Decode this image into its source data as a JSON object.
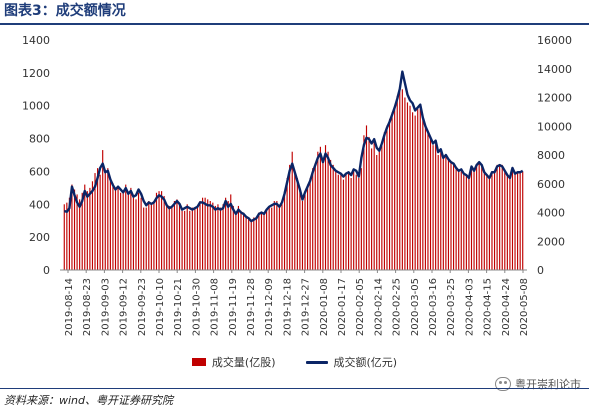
{
  "title": "图表3：成交额情况",
  "source": "资料来源：wind、粤开证券研究院",
  "watermark": "粤开崇利论市",
  "watermark_icon": "wechat-icon",
  "chart_data": {
    "type": "bar+line",
    "title": "",
    "y_left": {
      "ylim": [
        0,
        1400
      ],
      "ticks": [
        0,
        200,
        400,
        600,
        800,
        1000,
        1200,
        1400
      ]
    },
    "y_right": {
      "ylim": [
        0,
        16000
      ],
      "ticks": [
        0,
        2000,
        4000,
        6000,
        8000,
        10000,
        12000,
        14000,
        16000
      ]
    },
    "x_tick_labels": [
      "2019-08-14",
      "2019-08-23",
      "2019-09-03",
      "2019-09-12",
      "2019-09-23",
      "2019-10-10",
      "2019-10-21",
      "2019-10-30",
      "2019-11-08",
      "2019-11-19",
      "2019-11-28",
      "2019-12-09",
      "2019-12-18",
      "2019-12-27",
      "2020-01-08",
      "2020-01-17",
      "2020-02-05",
      "2020-02-14",
      "2020-02-25",
      "2020-03-05",
      "2020-03-16",
      "2020-03-25",
      "2020-04-03",
      "2020-04-15",
      "2020-04-24",
      "2020-05-08"
    ],
    "series": [
      {
        "name": "成交量(亿股)",
        "type": "bar",
        "axis": "left",
        "color": "#c00000",
        "values": [
          400,
          410,
          440,
          520,
          490,
          460,
          430,
          470,
          520,
          480,
          500,
          540,
          590,
          620,
          580,
          730,
          610,
          620,
          560,
          530,
          500,
          500,
          470,
          480,
          520,
          460,
          500,
          440,
          430,
          470,
          440,
          380,
          380,
          420,
          410,
          420,
          470,
          480,
          480,
          450,
          400,
          390,
          380,
          420,
          430,
          400,
          360,
          360,
          400,
          360,
          380,
          370,
          380,
          420,
          440,
          440,
          430,
          420,
          410,
          390,
          400,
          380,
          400,
          440,
          420,
          460,
          390,
          350,
          390,
          360,
          350,
          330,
          310,
          300,
          320,
          320,
          350,
          350,
          340,
          370,
          380,
          380,
          420,
          420,
          390,
          420,
          480,
          560,
          640,
          720,
          600,
          560,
          500,
          420,
          460,
          520,
          560,
          620,
          650,
          720,
          750,
          660,
          760,
          720,
          670,
          640,
          600,
          580,
          580,
          550,
          580,
          590,
          560,
          600,
          580,
          560,
          620,
          820,
          880,
          810,
          740,
          780,
          700,
          720,
          780,
          840,
          880,
          920,
          960,
          1000,
          1060,
          1120,
          1100,
          1050,
          1020,
          1000,
          960,
          940,
          980,
          1000,
          920,
          880,
          840,
          800,
          760,
          780,
          700,
          720,
          680,
          700,
          680,
          660,
          640,
          620,
          600,
          600,
          580,
          580,
          560,
          620,
          600,
          640,
          660,
          640,
          600,
          580,
          560,
          600,
          600,
          640,
          640,
          640,
          600,
          580,
          560,
          620,
          600,
          600,
          600,
          600
        ]
      },
      {
        "name": "成交额(亿元)",
        "type": "line",
        "axis": "right",
        "color": "#0b2566",
        "values": [
          4100,
          4050,
          4300,
          5800,
          5200,
          4700,
          4400,
          4800,
          5500,
          5100,
          5300,
          5500,
          5800,
          6400,
          7100,
          7400,
          6800,
          6900,
          6300,
          5900,
          5600,
          5800,
          5600,
          5400,
          5700,
          5300,
          5500,
          5100,
          5200,
          5600,
          5300,
          4800,
          4500,
          4700,
          4600,
          4700,
          5000,
          5200,
          5100,
          4900,
          4500,
          4300,
          4400,
          4600,
          4800,
          4600,
          4200,
          4300,
          4400,
          4300,
          4200,
          4300,
          4400,
          4700,
          4700,
          4600,
          4500,
          4500,
          4400,
          4200,
          4300,
          4200,
          4300,
          4800,
          4400,
          4600,
          4200,
          3900,
          4200,
          4000,
          3900,
          3700,
          3600,
          3400,
          3500,
          3600,
          3900,
          4000,
          3900,
          4200,
          4400,
          4500,
          4600,
          4600,
          4400,
          4700,
          5300,
          6100,
          6900,
          7400,
          6800,
          6200,
          5600,
          4900,
          5400,
          5800,
          6200,
          6800,
          7300,
          7800,
          8100,
          7500,
          8100,
          7800,
          7300,
          7100,
          6900,
          6800,
          6700,
          6500,
          6700,
          6800,
          6600,
          7000,
          6900,
          6500,
          7800,
          8700,
          9200,
          9100,
          8800,
          9100,
          8500,
          8300,
          8800,
          9400,
          9900,
          10300,
          10800,
          11300,
          11900,
          12600,
          13800,
          13000,
          12200,
          11800,
          11600,
          11100,
          11300,
          11500,
          10600,
          10000,
          9600,
          9200,
          8800,
          9000,
          8200,
          8400,
          7800,
          8000,
          7700,
          7500,
          7400,
          7100,
          6900,
          7000,
          6700,
          6600,
          6400,
          7200,
          6900,
          7300,
          7500,
          7300,
          6800,
          6600,
          6400,
          6800,
          6800,
          7200,
          7300,
          7200,
          6900,
          6600,
          6400,
          7100,
          6700,
          6800,
          6800,
          6900
        ]
      }
    ],
    "grid": false,
    "legend": "bottom-center"
  }
}
